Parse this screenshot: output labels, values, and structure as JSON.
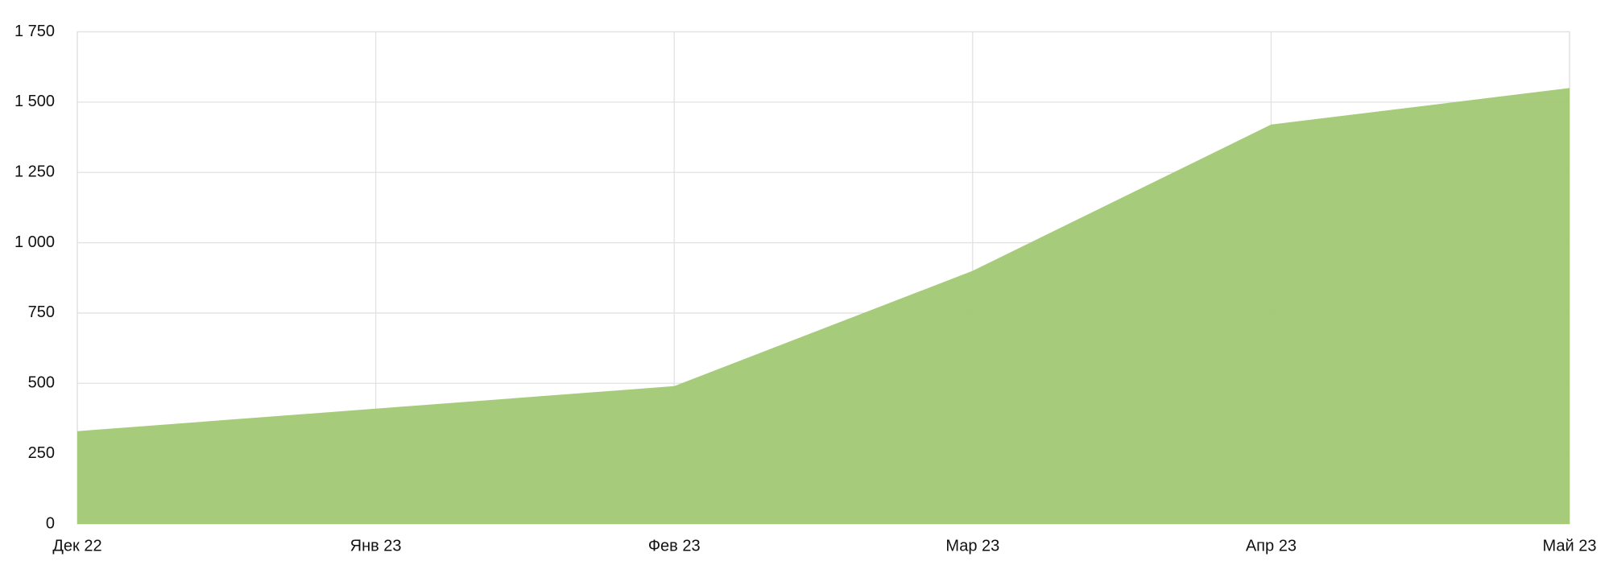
{
  "chart_data": {
    "type": "area",
    "categories": [
      "Дек 22",
      "Янв 23",
      "Фев 23",
      "Мар 23",
      "Апр 23",
      "Май 23"
    ],
    "values": [
      330,
      410,
      490,
      900,
      1420,
      1550
    ],
    "color": "#a3c977",
    "ylim": [
      0,
      1750
    ],
    "yticks": [
      0,
      250,
      500,
      750,
      {
        "value": 1000,
        "label": "1 000"
      },
      {
        "value": 1250,
        "label": "1 250"
      },
      {
        "value": 1500,
        "label": "1 500"
      },
      {
        "value": 1750,
        "label": "1 750"
      }
    ],
    "grid": true
  }
}
